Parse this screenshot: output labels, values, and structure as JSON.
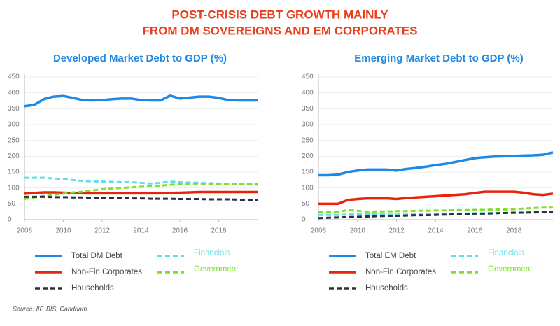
{
  "title": [
    "POST-CRISIS DEBT GROWTH MAINLY",
    "FROM DM SOVEREIGNS AND EM CORPORATES"
  ],
  "source": "Source: IIF, BIS, Candriam",
  "chart_data": [
    {
      "type": "line",
      "title": "Developed Market Debt to GDP (%)",
      "x": [
        2008,
        2008.5,
        2009,
        2009.5,
        2010,
        2010.5,
        2011,
        2011.5,
        2012,
        2012.5,
        2013,
        2013.5,
        2014,
        2014.5,
        2015,
        2015.5,
        2016,
        2016.5,
        2017,
        2017.5,
        2018,
        2018.5,
        2019,
        2019.5,
        2020
      ],
      "xlim": [
        2008,
        2020
      ],
      "xticks": [
        2008,
        2010,
        2012,
        2014,
        2016,
        2018
      ],
      "ylim": [
        0,
        450
      ],
      "yticks": [
        0,
        50,
        100,
        150,
        200,
        250,
        300,
        350,
        400,
        450
      ],
      "grid": true,
      "series": [
        {
          "name": "Total DM Debt",
          "color": "#1e88e5",
          "dashed": false,
          "values": [
            358,
            362,
            380,
            388,
            390,
            384,
            377,
            376,
            377,
            380,
            382,
            382,
            377,
            376,
            376,
            391,
            382,
            385,
            388,
            388,
            384,
            377,
            376,
            376,
            376
          ]
        },
        {
          "name": "Financials",
          "color": "#5ee0e8",
          "dashed": true,
          "values": [
            132,
            132,
            132,
            130,
            128,
            125,
            122,
            121,
            120,
            119,
            118,
            118,
            116,
            114,
            116,
            120,
            118,
            117,
            116,
            115,
            114,
            113,
            112,
            111,
            110
          ]
        },
        {
          "name": "Non-Fin Corporates",
          "color": "#e8250c",
          "dashed": false,
          "values": [
            82,
            84,
            86,
            86,
            85,
            84,
            83,
            83,
            83,
            83,
            83,
            83,
            83,
            83,
            83,
            84,
            85,
            86,
            87,
            87,
            87,
            87,
            87,
            87,
            87
          ]
        },
        {
          "name": "Government",
          "color": "#7ee02a",
          "dashed": true,
          "values": [
            65,
            70,
            75,
            78,
            82,
            86,
            88,
            92,
            96,
            98,
            100,
            102,
            104,
            105,
            107,
            110,
            112,
            114,
            114,
            113,
            113,
            113,
            113,
            112,
            112
          ]
        },
        {
          "name": "Households",
          "color": "#2b3040",
          "dashed": true,
          "values": [
            72,
            72,
            72,
            71,
            71,
            70,
            70,
            69,
            69,
            68,
            68,
            67,
            67,
            66,
            66,
            66,
            65,
            65,
            65,
            64,
            64,
            64,
            63,
            63,
            63
          ]
        }
      ]
    },
    {
      "type": "line",
      "title": "Emerging Market Debt to GDP (%)",
      "x": [
        2008,
        2008.5,
        2009,
        2009.5,
        2010,
        2010.5,
        2011,
        2011.5,
        2012,
        2012.5,
        2013,
        2013.5,
        2014,
        2014.5,
        2015,
        2015.5,
        2016,
        2016.5,
        2017,
        2017.5,
        2018,
        2018.5,
        2019,
        2019.5,
        2020
      ],
      "xlim": [
        2008,
        2020
      ],
      "xticks": [
        2008,
        2010,
        2012,
        2014,
        2016,
        2018
      ],
      "ylim": [
        0,
        450
      ],
      "yticks": [
        0,
        50,
        100,
        150,
        200,
        250,
        300,
        350,
        400,
        450
      ],
      "grid": true,
      "series": [
        {
          "name": "Total EM Debt",
          "color": "#1e88e5",
          "dashed": false,
          "values": [
            140,
            140,
            142,
            150,
            155,
            158,
            158,
            158,
            155,
            160,
            163,
            167,
            172,
            176,
            182,
            188,
            194,
            197,
            199,
            200,
            201,
            202,
            203,
            205,
            212
          ]
        },
        {
          "name": "Financials",
          "color": "#5ee0e8",
          "dashed": true,
          "values": [
            15,
            15,
            15,
            16,
            17,
            17,
            17,
            16,
            16,
            16,
            17,
            17,
            18,
            18,
            19,
            19,
            20,
            20,
            21,
            21,
            21,
            22,
            22,
            23,
            23
          ]
        },
        {
          "name": "Non-Fin Corporates",
          "color": "#e8250c",
          "dashed": false,
          "values": [
            50,
            50,
            50,
            62,
            65,
            67,
            67,
            67,
            65,
            68,
            70,
            72,
            74,
            76,
            78,
            80,
            84,
            88,
            88,
            88,
            88,
            85,
            80,
            78,
            82
          ]
        },
        {
          "name": "Government",
          "color": "#7ee02a",
          "dashed": true,
          "values": [
            25,
            25,
            25,
            30,
            28,
            25,
            26,
            26,
            27,
            27,
            28,
            28,
            29,
            29,
            30,
            30,
            31,
            31,
            32,
            32,
            33,
            35,
            37,
            38,
            38
          ]
        },
        {
          "name": "Households",
          "color": "#2b3040",
          "dashed": true,
          "values": [
            5,
            6,
            7,
            8,
            9,
            10,
            11,
            12,
            12,
            13,
            14,
            14,
            15,
            16,
            17,
            18,
            19,
            19,
            20,
            21,
            22,
            22,
            23,
            24,
            25
          ]
        }
      ]
    }
  ]
}
